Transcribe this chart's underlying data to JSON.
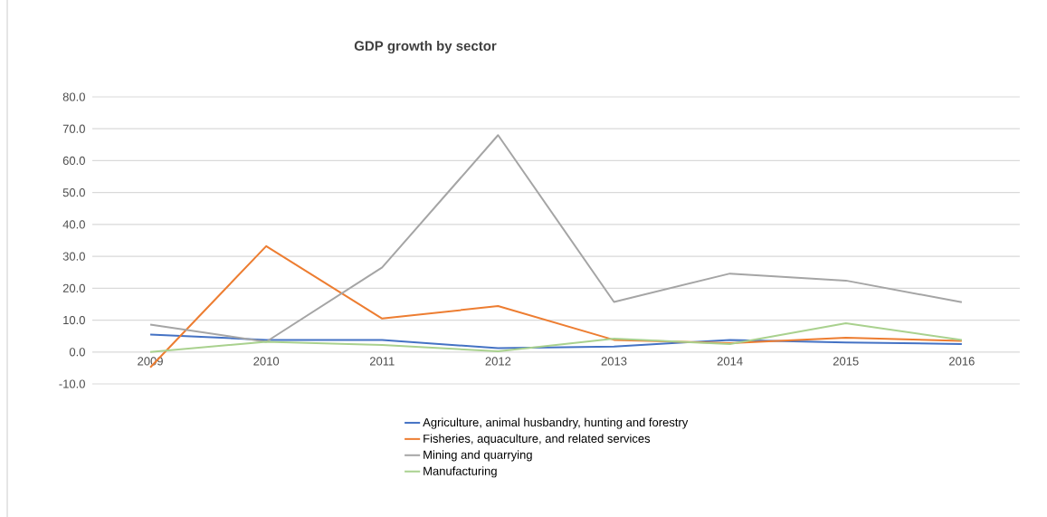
{
  "chart_data": {
    "type": "line",
    "title": "GDP growth by sector",
    "categories": [
      "2009",
      "2010",
      "2011",
      "2012",
      "2013",
      "2014",
      "2015",
      "2016"
    ],
    "series": [
      {
        "name": "Agriculture, animal husbandry, hunting and forestry",
        "color": "#4472c4",
        "values": [
          5.5,
          3.8,
          3.8,
          1.2,
          1.7,
          3.8,
          3.0,
          2.5
        ]
      },
      {
        "name": "Fisheries, aquaculture, and related services",
        "color": "#ed7d31",
        "values": [
          -4.8,
          33.2,
          10.5,
          14.4,
          3.8,
          2.8,
          4.5,
          3.5
        ]
      },
      {
        "name": "Mining and quarrying",
        "color": "#a5a5a5",
        "values": [
          8.6,
          3.2,
          26.5,
          68.0,
          15.7,
          24.6,
          22.4,
          15.6
        ]
      },
      {
        "name": "Manufacturing",
        "color": "#a9d18e",
        "values": [
          0.0,
          3.2,
          2.2,
          0.2,
          4.2,
          2.5,
          9.0,
          3.8
        ]
      }
    ],
    "ylim": [
      -10,
      80
    ],
    "yticks": [
      {
        "value": -10,
        "label": "-10.0"
      },
      {
        "value": 0,
        "label": "0.0"
      },
      {
        "value": 10,
        "label": "10.0"
      },
      {
        "value": 20,
        "label": "20.0"
      },
      {
        "value": 30,
        "label": "30.0"
      },
      {
        "value": 40,
        "label": "40.0"
      },
      {
        "value": 50,
        "label": "50.0"
      },
      {
        "value": 60,
        "label": "60.0"
      },
      {
        "value": 70,
        "label": "70.0"
      },
      {
        "value": 80,
        "label": "80.0"
      }
    ],
    "grid": "y",
    "legend": "bottom",
    "marker": "none",
    "line_style": "solid"
  }
}
